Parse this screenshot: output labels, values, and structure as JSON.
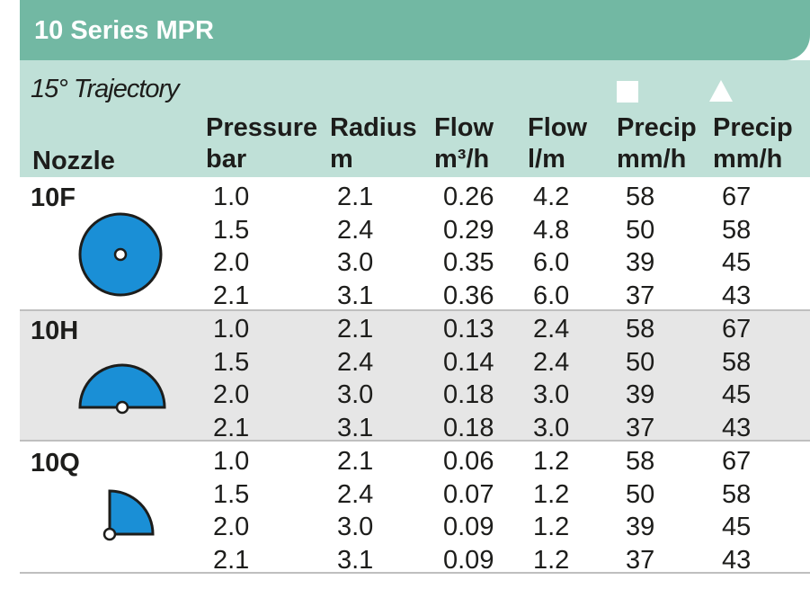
{
  "title": "10 Series MPR",
  "trajectory": "15° Trajectory",
  "headers": {
    "nozzle": "Nozzle",
    "pressure": [
      "Pressure",
      "bar"
    ],
    "radius": [
      "Radius",
      "m"
    ],
    "flow_m3h": [
      "Flow",
      "m³/h"
    ],
    "flow_lm": [
      "Flow",
      "l/m"
    ],
    "precip_square": [
      "Precip",
      "mm/h"
    ],
    "precip_triangle": [
      "Precip",
      "mm/h"
    ]
  },
  "symbols": {
    "square": "square-icon",
    "triangle": "triangle-icon"
  },
  "colors": {
    "title_bar": "#72b8a3",
    "header_band": "#bfe0d7",
    "nozzle_fill": "#1a8fd6",
    "alt_band": "#e6e6e6"
  },
  "nozzles": [
    {
      "name": "10F",
      "icon": "full-circle-nozzle-icon",
      "rows": [
        [
          "1.0",
          "2.1",
          "0.26",
          "4.2",
          "58",
          "67"
        ],
        [
          "1.5",
          "2.4",
          "0.29",
          "4.8",
          "50",
          "58"
        ],
        [
          "2.0",
          "3.0",
          "0.35",
          "6.0",
          "39",
          "45"
        ],
        [
          "2.1",
          "3.1",
          "0.36",
          "6.0",
          "37",
          "43"
        ]
      ]
    },
    {
      "name": "10H",
      "icon": "half-circle-nozzle-icon",
      "rows": [
        [
          "1.0",
          "2.1",
          "0.13",
          "2.4",
          "58",
          "67"
        ],
        [
          "1.5",
          "2.4",
          "0.14",
          "2.4",
          "50",
          "58"
        ],
        [
          "2.0",
          "3.0",
          "0.18",
          "3.0",
          "39",
          "45"
        ],
        [
          "2.1",
          "3.1",
          "0.18",
          "3.0",
          "37",
          "43"
        ]
      ]
    },
    {
      "name": "10Q",
      "icon": "quarter-circle-nozzle-icon",
      "rows": [
        [
          "1.0",
          "2.1",
          "0.06",
          "1.2",
          "58",
          "67"
        ],
        [
          "1.5",
          "2.4",
          "0.07",
          "1.2",
          "50",
          "58"
        ],
        [
          "2.0",
          "3.0",
          "0.09",
          "1.2",
          "39",
          "45"
        ],
        [
          "2.1",
          "3.1",
          "0.09",
          "1.2",
          "37",
          "43"
        ]
      ]
    }
  ]
}
